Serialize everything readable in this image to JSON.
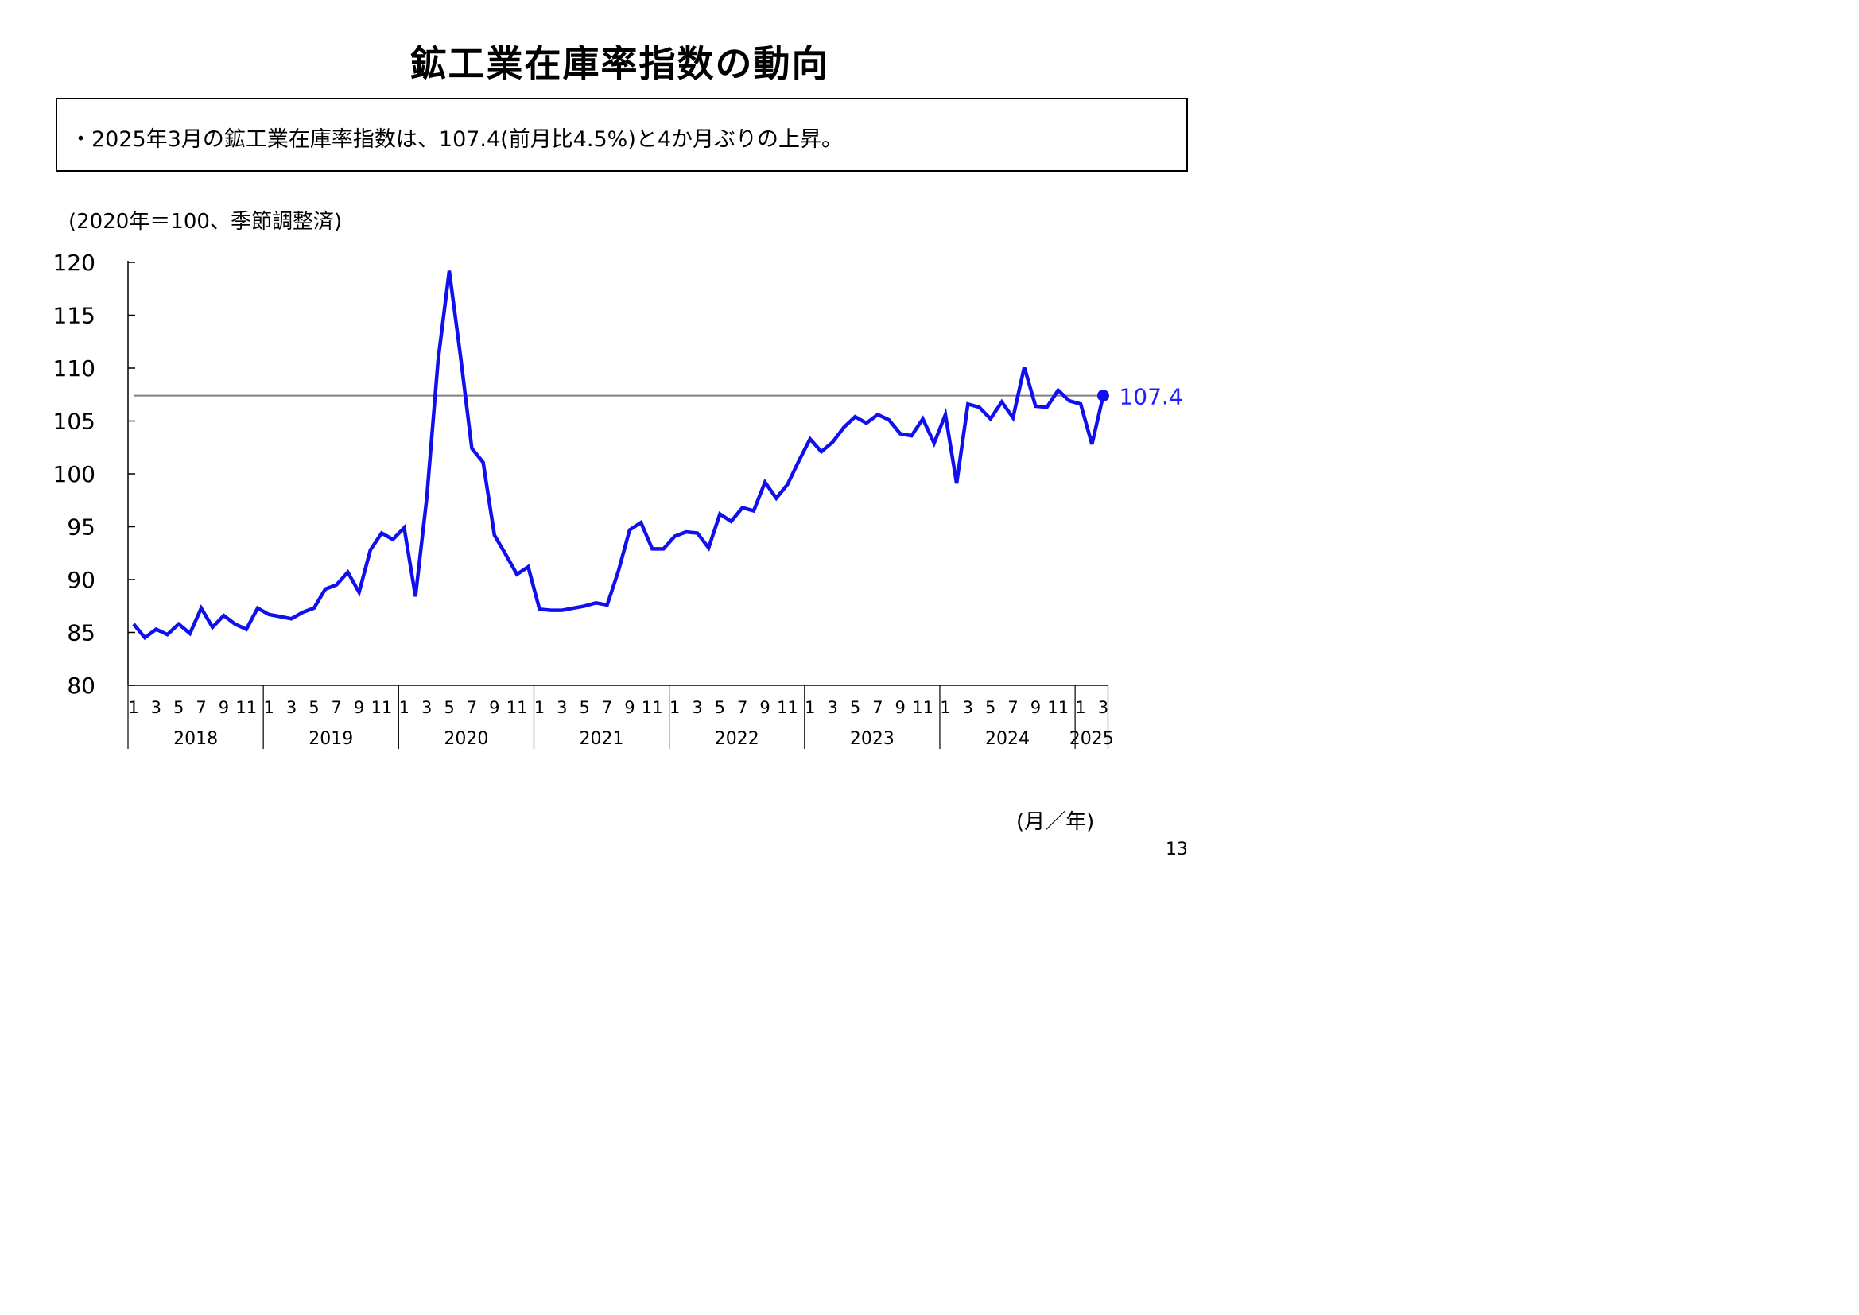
{
  "title": "鉱工業在庫率指数の動向",
  "summary": "・2025年3月の鉱工業在庫率指数は、107.4(前月比4.5%)と4か月ぶりの上昇。",
  "unit_note": "(2020年＝100、季節調整済)",
  "axis_unit": "(月／年)",
  "page_number": "13",
  "colors": {
    "line": "#1010ee",
    "reference_line": "#808080",
    "value_label": "#1c1cff"
  },
  "chart_data": {
    "type": "line",
    "ylim": [
      80,
      120
    ],
    "yticks": [
      "80",
      "85",
      "90",
      "95",
      "100",
      "105",
      "110",
      "115",
      "120"
    ],
    "month_tick_labels": [
      "1",
      "3",
      "5",
      "7",
      "9",
      "11"
    ],
    "years": [
      "2018",
      "2019",
      "2020",
      "2021",
      "2022",
      "2023",
      "2024",
      "2025"
    ],
    "last_year_month_labels": [
      "1",
      "3"
    ],
    "reference_line": 107.4,
    "latest_label": "107.4",
    "series": [
      {
        "values": [
          85.8,
          84.5,
          85.3,
          84.8,
          85.8,
          84.9,
          87.3,
          85.5,
          86.6,
          85.8,
          85.3,
          87.3,
          86.7,
          86.5,
          86.3,
          86.9,
          87.3,
          89.1,
          89.5,
          90.7,
          88.8,
          92.8,
          94.4,
          93.8,
          94.9,
          88.4,
          97.7,
          110.7,
          119.2,
          111.1,
          102.4,
          101.1,
          94.2,
          92.4,
          90.5,
          91.2,
          87.2,
          87.1,
          87.1,
          87.3,
          87.5,
          87.8,
          87.6,
          90.8,
          94.7,
          95.4,
          92.9,
          92.9,
          94.1,
          94.5,
          94.4,
          93.0,
          96.2,
          95.5,
          96.8,
          96.5,
          99.2,
          97.7,
          99.0,
          101.2,
          103.3,
          102.1,
          103.0,
          104.4,
          105.4,
          104.8,
          105.6,
          105.1,
          103.8,
          103.6,
          105.2,
          102.9,
          105.6,
          99.1,
          106.6,
          106.3,
          105.2,
          106.8,
          105.3,
          110.1,
          106.4,
          106.3,
          107.9,
          106.9,
          106.6,
          102.8,
          107.4
        ]
      }
    ]
  }
}
